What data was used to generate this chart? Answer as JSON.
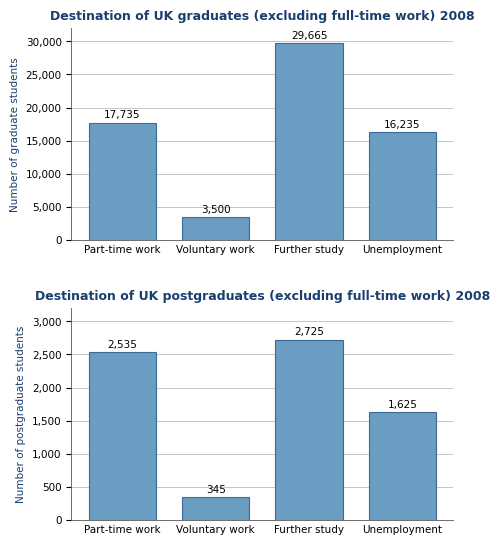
{
  "grad_title": "Destination of UK graduates (excluding full-time work) 2008",
  "postgrad_title": "Destination of UK postgraduates (excluding full-time work) 2008",
  "categories": [
    "Part-time work",
    "Voluntary work",
    "Further study",
    "Unemployment"
  ],
  "grad_values": [
    17735,
    3500,
    29665,
    16235
  ],
  "grad_labels": [
    "17,735",
    "3,500",
    "29,665",
    "16,235"
  ],
  "postgrad_values": [
    2535,
    345,
    2725,
    1625
  ],
  "postgrad_labels": [
    "2,535",
    "345",
    "2,725",
    "1,625"
  ],
  "bar_color": "#6b9dc2",
  "bar_edgecolor": "#3a6a9a",
  "grad_ylabel": "Number of graduate students",
  "postgrad_ylabel": "Number of postgraduate students",
  "grad_ylim": [
    0,
    32000
  ],
  "postgrad_ylim": [
    0,
    3200
  ],
  "grad_yticks": [
    0,
    5000,
    10000,
    15000,
    20000,
    25000,
    30000
  ],
  "postgrad_yticks": [
    0,
    500,
    1000,
    1500,
    2000,
    2500,
    3000
  ],
  "title_color": "#1a3f6f",
  "ylabel_color": "#1a3f6f",
  "title_fontsize": 9.0,
  "label_fontsize": 7.5,
  "ylabel_fontsize": 7.5,
  "tick_fontsize": 7.5,
  "bar_width": 0.72,
  "background_color": "#ffffff",
  "grid_color": "#bbbbbb",
  "spine_color": "#555555"
}
